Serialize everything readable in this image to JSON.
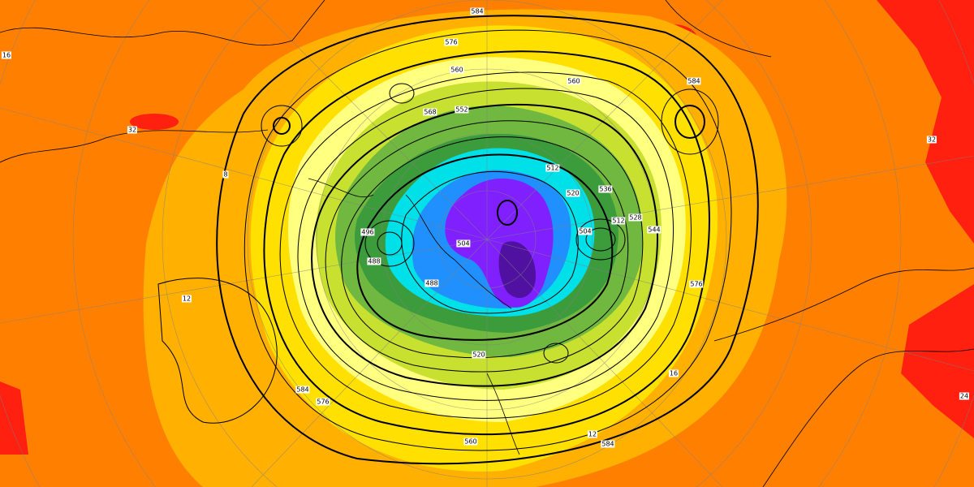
{
  "map": {
    "colors": {
      "background": "#ff8000",
      "hot": "#ff2010",
      "warm": "#ffb000",
      "yellow": "#ffe000",
      "pale_yellow": "#ffff80",
      "yellow_green": "#c8e030",
      "green": "#70b840",
      "dark_green": "#3c9c3c",
      "cyan": "#00e0e8",
      "blue": "#2090ff",
      "purple": "#8020ff",
      "dark_purple": "#5010a0",
      "contour": "#000000"
    },
    "contour_labels": [
      {
        "text": "584",
        "pos": "north-top"
      },
      {
        "text": "576",
        "pos": "north"
      },
      {
        "text": "560",
        "pos": "north-inner"
      },
      {
        "text": "568",
        "pos": "north-west-inner"
      },
      {
        "text": "552",
        "pos": "north-center"
      },
      {
        "text": "584",
        "pos": "north-east"
      },
      {
        "text": "560",
        "pos": "north-east-inner"
      },
      {
        "text": "536",
        "pos": "east"
      },
      {
        "text": "528",
        "pos": "east"
      },
      {
        "text": "544",
        "pos": "east"
      },
      {
        "text": "512",
        "pos": "center-east"
      },
      {
        "text": "520",
        "pos": "center-east"
      },
      {
        "text": "504",
        "pos": "east-low"
      },
      {
        "text": "512",
        "pos": "east-low"
      },
      {
        "text": "576",
        "pos": "east-outer"
      },
      {
        "text": "16",
        "pos": "south-east"
      },
      {
        "text": "584",
        "pos": "south-east-outer"
      },
      {
        "text": "560",
        "pos": "south"
      },
      {
        "text": "520",
        "pos": "south-inner"
      },
      {
        "text": "576",
        "pos": "south-west"
      },
      {
        "text": "584",
        "pos": "south-west-outer"
      },
      {
        "text": "488",
        "pos": "center"
      },
      {
        "text": "488",
        "pos": "west-low"
      },
      {
        "text": "496",
        "pos": "west-low"
      },
      {
        "text": "504",
        "pos": "center"
      },
      {
        "text": "12",
        "pos": "west"
      },
      {
        "text": "8",
        "pos": "north-west"
      },
      {
        "text": "16",
        "pos": "far-west"
      },
      {
        "text": "32",
        "pos": "north-west-red"
      },
      {
        "text": "32",
        "pos": "far-east"
      },
      {
        "text": "24",
        "pos": "far-east-south"
      },
      {
        "text": "12",
        "pos": "south-east-inner"
      }
    ]
  }
}
